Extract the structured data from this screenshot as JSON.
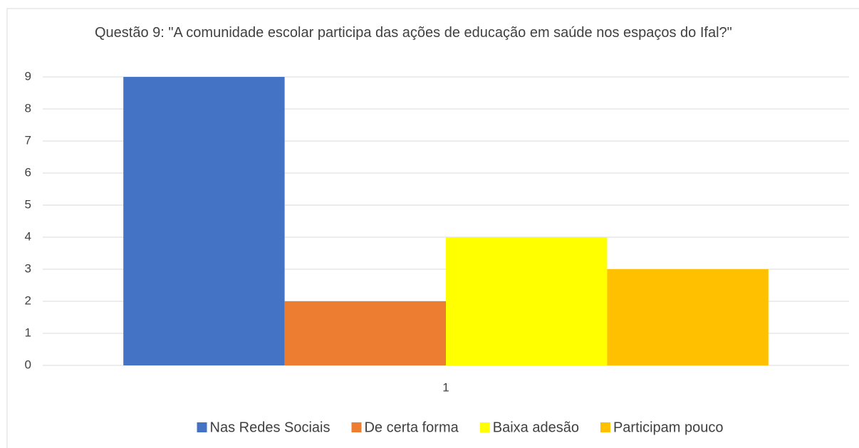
{
  "chart_data": {
    "type": "bar",
    "title": "Questão 9: \"A comunidade escolar participa das ações de educação em saúde nos espaços do Ifal?\"",
    "categories": [
      "1"
    ],
    "series": [
      {
        "name": "Nas Redes Sociais",
        "color": "#4472c4",
        "values": [
          9
        ]
      },
      {
        "name": "De certa forma",
        "color": "#ed7d31",
        "values": [
          2
        ]
      },
      {
        "name": "Baixa adesão",
        "color": "#ffff00",
        "values": [
          4
        ]
      },
      {
        "name": "Participam pouco",
        "color": "#ffc000",
        "values": [
          3
        ]
      }
    ],
    "ylim": [
      0,
      9
    ],
    "yticks": [
      0,
      1,
      2,
      3,
      4,
      5,
      6,
      7,
      8,
      9
    ],
    "grid": true,
    "legend": "bottom"
  }
}
